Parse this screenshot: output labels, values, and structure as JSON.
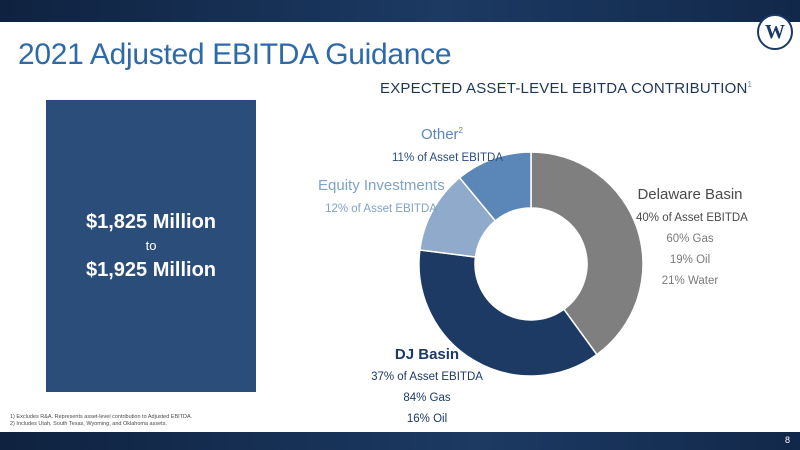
{
  "header": {
    "title": "2021 Adjusted EBITDA Guidance",
    "logo_letter": "W"
  },
  "guidance": {
    "line1": "$1,825 Million",
    "line2": "to",
    "line3": "$1,925 Million"
  },
  "chart_data": {
    "type": "pie",
    "style": "donut",
    "title": "EXPECTED ASSET-LEVEL EBITDA CONTRIBUTION",
    "title_footnote": "1",
    "slices": [
      {
        "name": "Delaware Basin",
        "value": 40,
        "pct_label": "40% of Asset EBITDA",
        "details": [
          "60% Gas",
          "19% Oil",
          "21% Water"
        ],
        "color": "#7f7f7f"
      },
      {
        "name": "DJ Basin",
        "value": 37,
        "pct_label": "37% of Asset EBITDA",
        "details": [
          "84% Gas",
          "16% Oil"
        ],
        "color": "#1d3a64"
      },
      {
        "name": "Equity Investments",
        "value": 12,
        "pct_label": "12% of Asset EBITDA",
        "details": [],
        "color": "#8faacb"
      },
      {
        "name": "Other",
        "name_footnote": "2",
        "value": 11,
        "pct_label": "11% of Asset EBITDA",
        "details": [],
        "color": "#5b87b8"
      }
    ]
  },
  "footnotes": [
    "1) Excludes R&A. Represents asset-level contribution to Adjusted EBITDA.",
    "2) Includes Utah, South Texas, Wyoming, and Oklahoma assets."
  ],
  "footer": {
    "page_number": "8"
  }
}
